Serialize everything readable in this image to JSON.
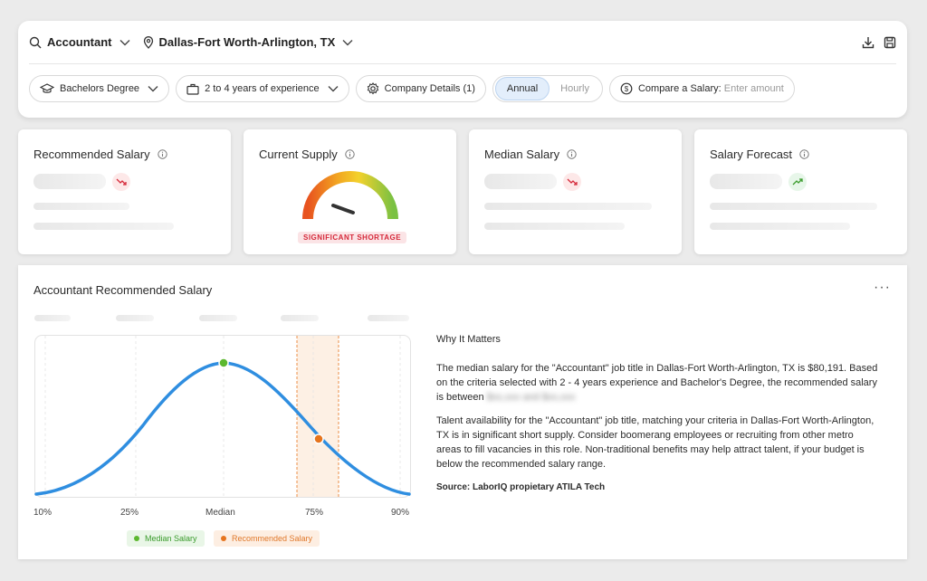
{
  "search": {
    "job": "Accountant",
    "location": "Dallas-Fort Worth-Arlington, TX"
  },
  "filters": {
    "education": "Bachelors Degree",
    "experience": "2 to 4 years of experience",
    "company": "Company Details (1)",
    "pay_annual": "Annual",
    "pay_hourly": "Hourly",
    "compare_label": "Compare a Salary:",
    "compare_placeholder": "Enter amount"
  },
  "cards": {
    "recommended": {
      "title": "Recommended Salary",
      "trend": "down"
    },
    "supply": {
      "title": "Current Supply",
      "status": "SIGNIFICANT SHORTAGE"
    },
    "median": {
      "title": "Median Salary",
      "trend": "down"
    },
    "forecast": {
      "title": "Salary Forecast",
      "trend": "up"
    }
  },
  "main": {
    "title": "Accountant Recommended Salary",
    "more": "···",
    "percentiles": [
      "10%",
      "25%",
      "Median",
      "75%",
      "90%"
    ],
    "legend_median": "Median Salary",
    "legend_recommended": "Recommended Salary",
    "why_title": "Why It Matters",
    "para1_a": "The median salary for the \"Accountant\" job title in Dallas-Fort Worth-Arlington, TX is $80,191. Based on the criteria selected with 2 - 4 years experience and Bachelor's Degree, the recommended salary is between",
    "para1_blur": "$xx,xxx and $xx,xxx",
    "para2": "Talent availability for the \"Accountant\" job title, matching your criteria in Dallas-Fort Worth-Arlington, TX is in significant short supply. Consider boomerang employees or recruiting from other metro areas to fill vacancies in this role. Non-traditional benefits may help attract talent, if your budget is below the recommended salary range.",
    "source": "Source: LaborIQ propietary ATILA Tech"
  },
  "colors": {
    "curve": "#2f8ee0",
    "median_marker": "#5cb82f",
    "recommended_marker": "#e6741d",
    "band": "#fdf0e4"
  }
}
